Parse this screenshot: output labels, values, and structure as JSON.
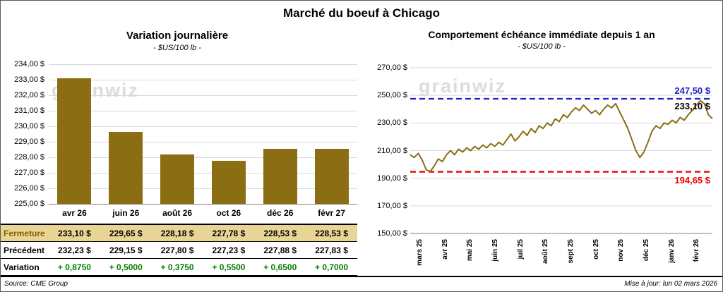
{
  "header": {
    "title": "Marché du boeuf à Chicago"
  },
  "watermark": "grainwiz",
  "colors": {
    "gold": "#8b6d14",
    "tan": "#e8d494",
    "tan_text": "#806000",
    "green": "#008000",
    "blue": "#2222cc",
    "red": "#ee0000",
    "grid": "#d9d9d9",
    "axis": "#808080",
    "watermark_gray": "#dcdcdc"
  },
  "left": {
    "title": "Variation journalière",
    "subtitle": "- $US/100 lb -",
    "source": "Source: CME Group",
    "table": {
      "rows": [
        {
          "label": "Fermeture",
          "values": [
            "233,10 $",
            "229,65 $",
            "228,18 $",
            "227,78 $",
            "228,53 $",
            "228,53 $"
          ]
        },
        {
          "label": "Précédent",
          "values": [
            "232,23 $",
            "229,15 $",
            "227,80 $",
            "227,23 $",
            "227,88 $",
            "227,83 $"
          ]
        },
        {
          "label": "Variation",
          "values": [
            "+ 0,8750",
            "+ 0,5000",
            "+ 0,3750",
            "+ 0,5500",
            "+ 0,6500",
            "+ 0,7000"
          ]
        }
      ]
    }
  },
  "right": {
    "title": "Comportement échéance immédiate depuis 1 an",
    "subtitle": "- $US/100 lb -",
    "updated": "Mise à jour: lun 02 mars 2026",
    "annotations": {
      "resistance": "247,50 $",
      "last": "233,10 $",
      "support": "194,65 $"
    }
  },
  "chart_data": [
    {
      "type": "bar",
      "title": "Variation journalière",
      "ylabel": "$US/100 lb",
      "categories": [
        "avr 26",
        "juin 26",
        "août 26",
        "oct 26",
        "déc 26",
        "févr 27"
      ],
      "values": [
        233.1,
        229.65,
        228.18,
        227.78,
        228.53,
        228.53
      ],
      "previous_values": [
        232.23,
        229.15,
        227.8,
        227.23,
        227.88,
        227.83
      ],
      "variations": [
        0.875,
        0.5,
        0.375,
        0.55,
        0.65,
        0.7
      ],
      "ylim": [
        225,
        234
      ],
      "ytick_labels": [
        "234,00 $",
        "233,00 $",
        "232,00 $",
        "231,00 $",
        "230,00 $",
        "229,00 $",
        "228,00 $",
        "227,00 $",
        "226,00 $",
        "225,00 $"
      ],
      "bar_color": "#8b6d14",
      "grid": true
    },
    {
      "type": "line",
      "title": "Comportement échéance immédiate depuis 1 an",
      "ylabel": "$US/100 lb",
      "x_labels": [
        "mars 25",
        "avr 25",
        "mai 25",
        "juin 25",
        "juil 25",
        "août 25",
        "sept 25",
        "oct 25",
        "nov 25",
        "déc 25",
        "janv 26",
        "févr 26"
      ],
      "values": [
        207,
        205,
        208,
        203,
        196,
        195,
        199,
        204,
        202,
        207,
        210,
        207,
        211,
        209,
        212,
        210,
        213,
        211,
        214,
        212,
        215,
        213,
        216,
        214,
        218,
        222,
        217,
        220,
        224,
        221,
        226,
        223,
        228,
        226,
        230,
        228,
        233,
        231,
        236,
        234,
        238,
        241,
        239,
        243,
        240,
        237,
        239,
        236,
        240,
        243,
        241,
        244,
        238,
        232,
        226,
        218,
        210,
        205,
        209,
        216,
        224,
        228,
        226,
        230,
        229,
        232,
        230,
        234,
        232,
        236,
        239,
        243,
        246,
        244,
        236,
        233.1
      ],
      "ylim": [
        150,
        270
      ],
      "ytick_labels": [
        "270,00 $",
        "250,00 $",
        "230,00 $",
        "210,00 $",
        "190,00 $",
        "170,00 $",
        "150,00 $"
      ],
      "line_color": "#8b6d14",
      "reference_lines": [
        {
          "value": 247.5,
          "label": "247,50 $",
          "color": "#2222cc",
          "style": "dashed"
        },
        {
          "value": 194.65,
          "label": "194,65 $",
          "color": "#ee0000",
          "style": "dashed"
        }
      ],
      "last_value": 233.1,
      "legend": "none",
      "grid": true
    }
  ]
}
